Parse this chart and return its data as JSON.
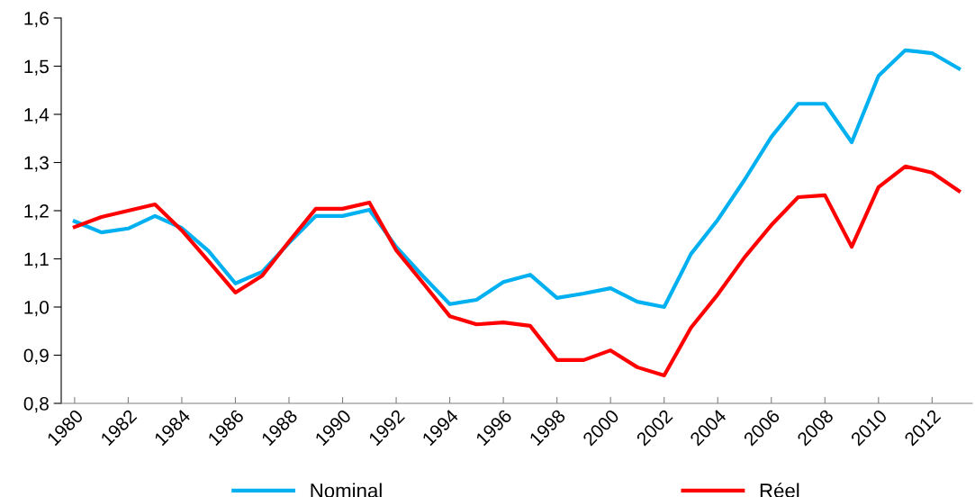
{
  "chart_data": {
    "type": "line",
    "categories": [
      "1980",
      null,
      "1982",
      null,
      "1984",
      null,
      "1986",
      null,
      "1988",
      null,
      "1990",
      null,
      "1992",
      null,
      "1994",
      null,
      "1996",
      null,
      "1998",
      null,
      "2000",
      null,
      "2002",
      null,
      "2004",
      null,
      "2006",
      null,
      "2008",
      null,
      "2010",
      null,
      "2012",
      null
    ],
    "series": [
      {
        "name": "Nominal",
        "color": "#00b0f0",
        "values": [
          1.178,
          1.155,
          1.163,
          1.189,
          1.164,
          1.116,
          1.049,
          1.073,
          1.133,
          1.189,
          1.189,
          1.202,
          1.125,
          1.064,
          1.006,
          1.015,
          1.052,
          1.067,
          1.019,
          1.028,
          1.039,
          1.011,
          1.0,
          1.11,
          1.181,
          1.264,
          1.353,
          1.422,
          1.422,
          1.342,
          1.48,
          1.533,
          1.527,
          1.495
        ]
      },
      {
        "name": "Réel",
        "color": "#ff0000",
        "values": [
          1.166,
          1.187,
          1.2,
          1.213,
          1.159,
          1.095,
          1.03,
          1.065,
          1.136,
          1.204,
          1.204,
          1.217,
          1.118,
          1.05,
          0.981,
          0.964,
          0.968,
          0.961,
          0.89,
          0.89,
          0.91,
          0.875,
          0.858,
          0.957,
          1.026,
          1.103,
          1.17,
          1.228,
          1.232,
          1.125,
          1.249,
          1.292,
          1.279,
          1.241
        ]
      }
    ],
    "ylim": [
      0.8,
      1.6
    ],
    "yticks": [
      {
        "value": 0.8,
        "label": "0,8"
      },
      {
        "value": 0.9,
        "label": "0,9"
      },
      {
        "value": 1.0,
        "label": "1,0"
      },
      {
        "value": 1.1,
        "label": "1,1"
      },
      {
        "value": 1.2,
        "label": "1,2"
      },
      {
        "value": 1.3,
        "label": "1,3"
      },
      {
        "value": 1.4,
        "label": "1,4"
      },
      {
        "value": 1.5,
        "label": "1,5"
      },
      {
        "value": 1.6,
        "label": "1,6"
      }
    ],
    "grid": false,
    "legend": "bottom",
    "marker": "none",
    "line_style": "solid"
  }
}
